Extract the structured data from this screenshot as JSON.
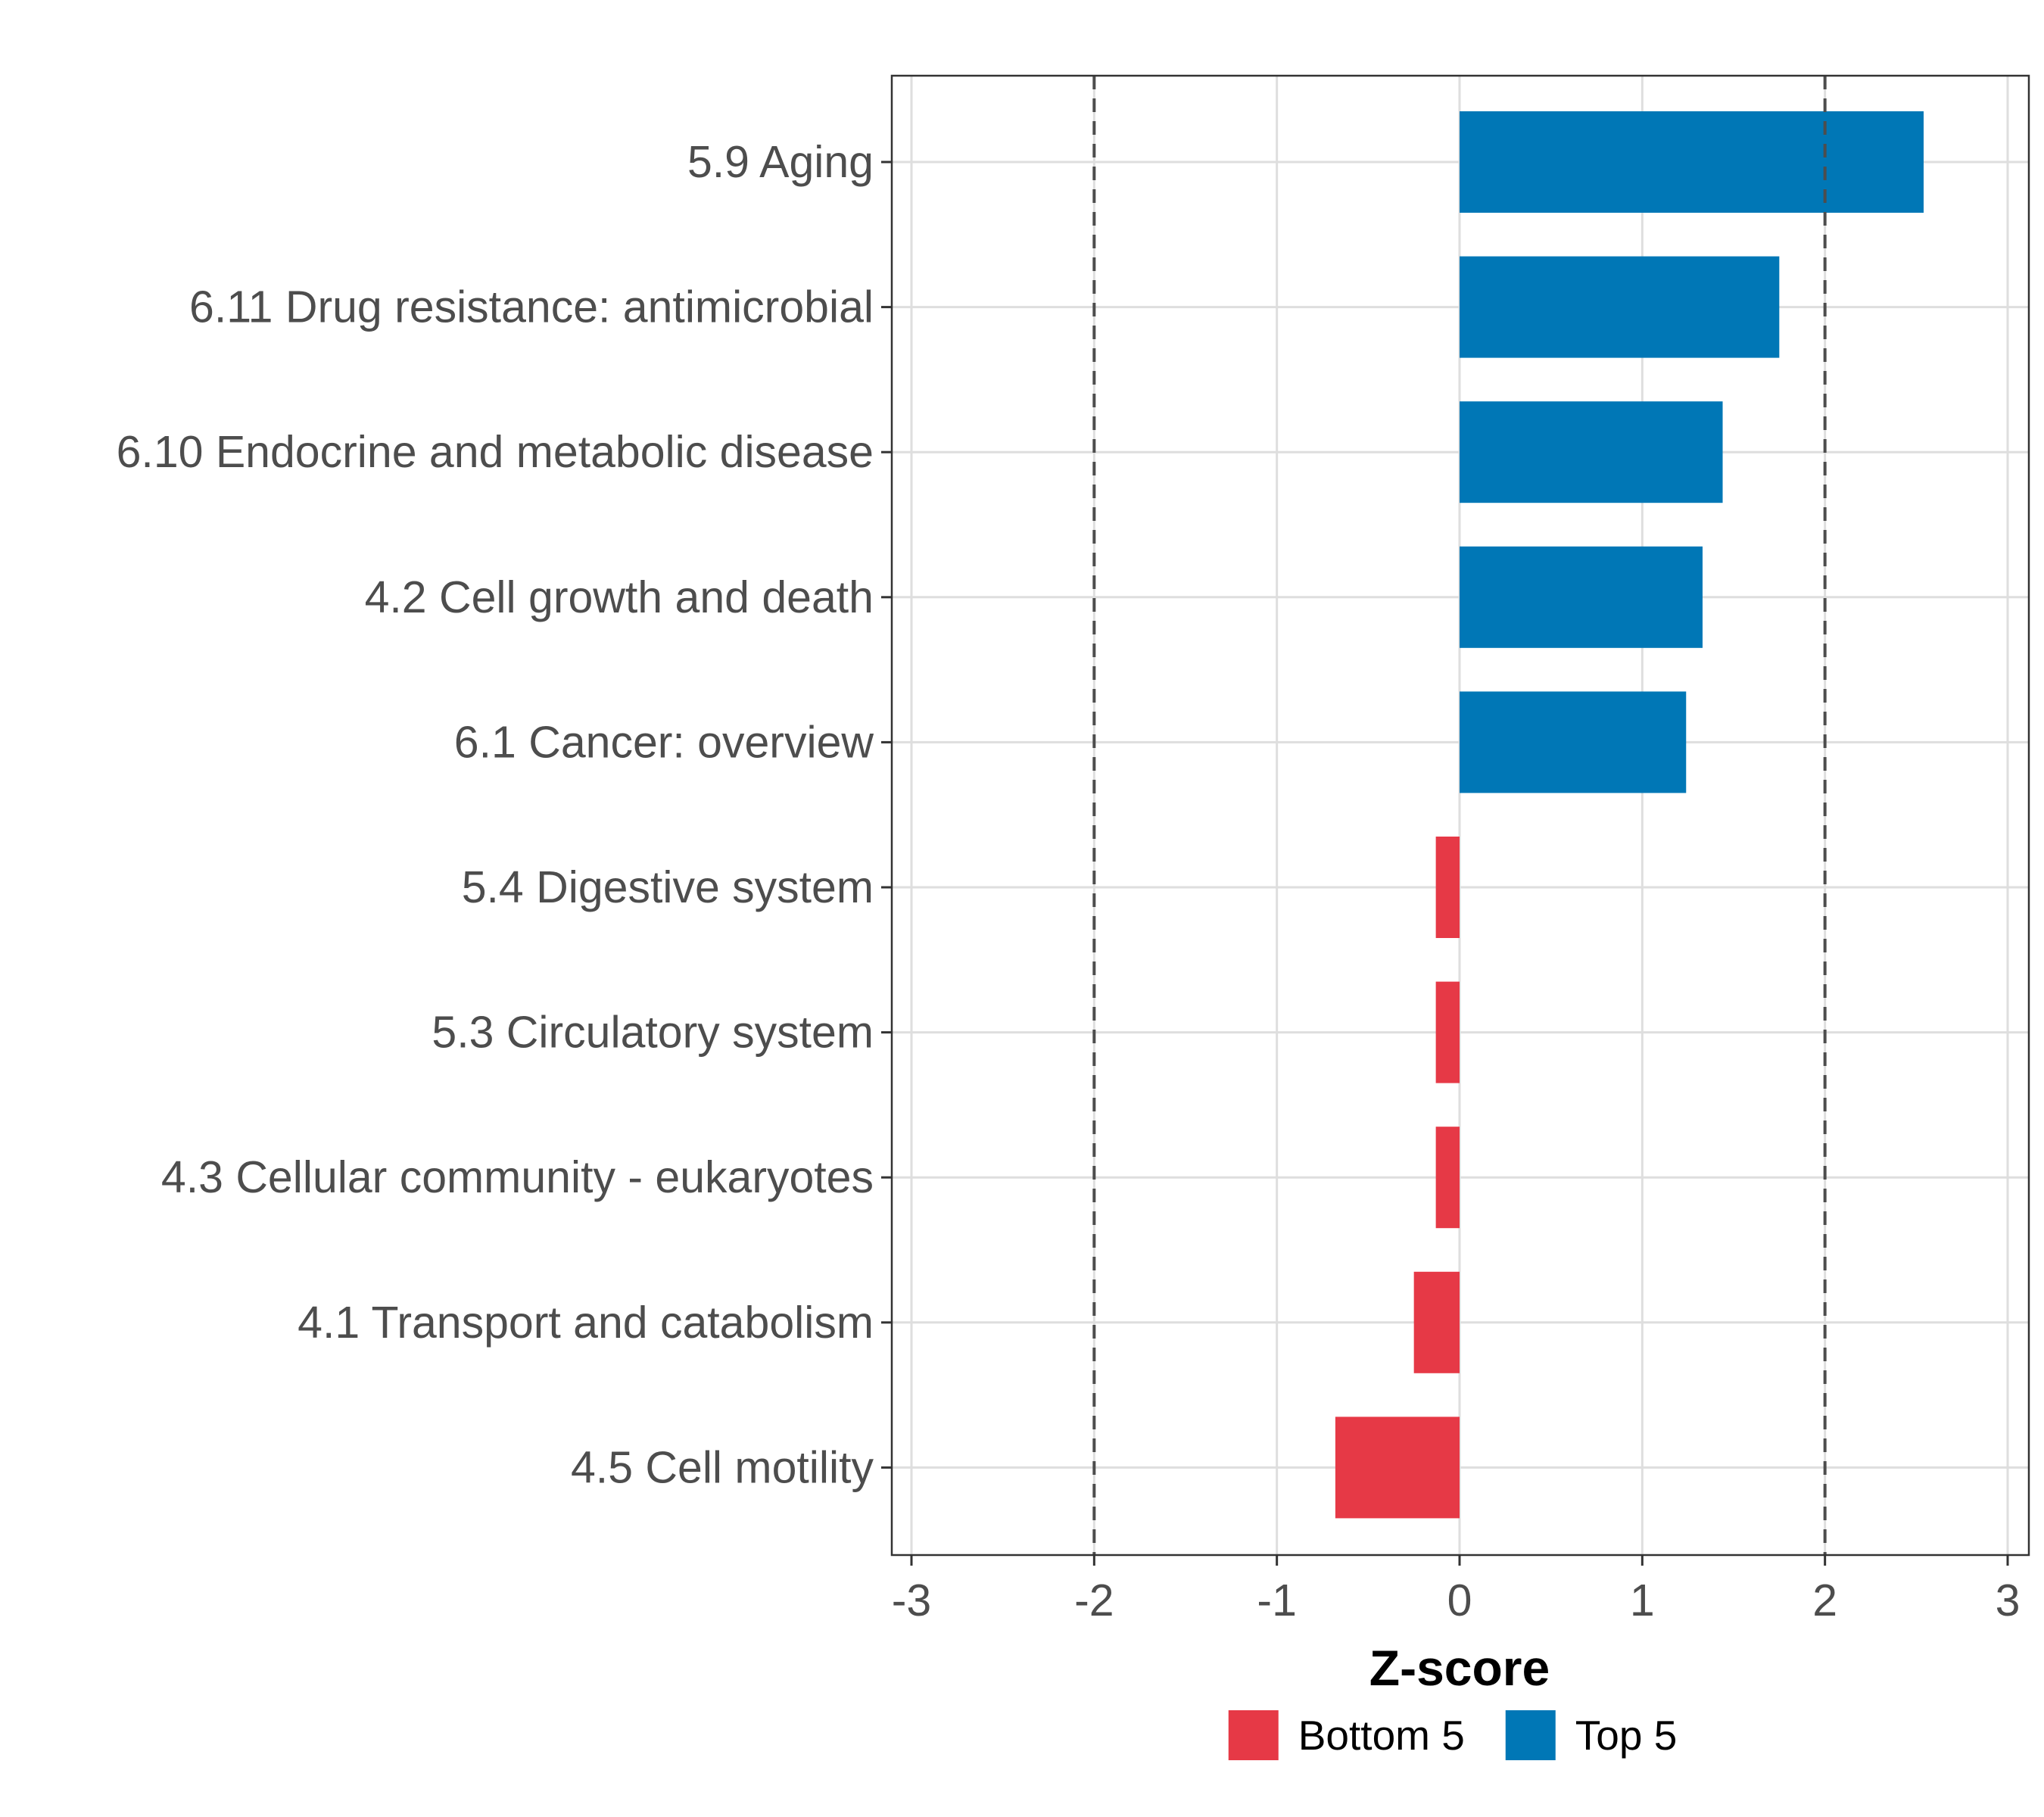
{
  "chart_data": {
    "type": "bar",
    "orientation": "horizontal",
    "title": "",
    "xlabel": "Z-score",
    "ylabel": "",
    "xlim": [
      -3,
      3
    ],
    "xticks": [
      -3,
      -2,
      -1,
      0,
      1,
      2,
      3
    ],
    "reference_lines": [
      -2,
      2
    ],
    "grid": true,
    "legend_position": "bottom",
    "categories": [
      "5.9 Aging",
      "6.11 Drug resistance: antimicrobial",
      "6.10 Endocrine and metabolic disease",
      "4.2 Cell growth and death",
      "6.1 Cancer: overview",
      "5.4 Digestive system",
      "5.3 Circulatory system",
      "4.3 Cellular community - eukaryotes",
      "4.1 Transport and catabolism",
      "4.5 Cell motility"
    ],
    "values": [
      2.54,
      1.75,
      1.44,
      1.33,
      1.24,
      -0.13,
      -0.13,
      -0.13,
      -0.25,
      -0.68
    ],
    "groups": [
      "Top 5",
      "Top 5",
      "Top 5",
      "Top 5",
      "Top 5",
      "Bottom 5",
      "Bottom 5",
      "Bottom 5",
      "Bottom 5",
      "Bottom 5"
    ],
    "legend": [
      {
        "name": "Bottom 5",
        "color": "#E63946"
      },
      {
        "name": "Top 5",
        "color": "#0077B6"
      }
    ]
  }
}
